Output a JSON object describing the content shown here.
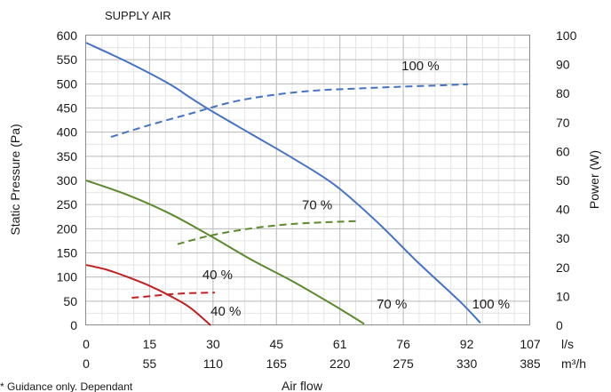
{
  "chart_data": {
    "type": "line",
    "title": "SUPPLY AIR",
    "xlabel": "Air flow",
    "ylabel_left": "Static Pressure (Pa)",
    "ylabel_right": "Power (W)",
    "footnote": "* Guidance only. Dependant",
    "grid": true,
    "x_unit_primary": "l/s",
    "x_unit_secondary": "m³/h",
    "xlim": [
      0,
      107
    ],
    "ylim_left": [
      0,
      600
    ],
    "ylim_right": [
      0,
      100
    ],
    "x_ticks_primary": [
      "0",
      "15",
      "30",
      "45",
      "61",
      "76",
      "92",
      "107"
    ],
    "x_ticks_secondary": [
      "0",
      "55",
      "110",
      "165",
      "220",
      "275",
      "330",
      "385"
    ],
    "y_ticks_left": [
      "0",
      "50",
      "100",
      "150",
      "200",
      "250",
      "300",
      "350",
      "400",
      "450",
      "500",
      "550",
      "600"
    ],
    "y_ticks_right": [
      "0",
      "10",
      "20",
      "30",
      "40",
      "50",
      "60",
      "70",
      "80",
      "90",
      "100"
    ],
    "series": [
      {
        "name": "100 %",
        "kind": "pressure",
        "axis": "left",
        "style": "solid",
        "color": "#4472C4",
        "points": [
          [
            0,
            585
          ],
          [
            10,
            545
          ],
          [
            20,
            500
          ],
          [
            25,
            472
          ],
          [
            30,
            445
          ],
          [
            40,
            395
          ],
          [
            50,
            345
          ],
          [
            60,
            290
          ],
          [
            70,
            215
          ],
          [
            80,
            130
          ],
          [
            90,
            50
          ],
          [
            95,
            5
          ]
        ],
        "label_xy": [
          93,
          35
        ]
      },
      {
        "name": "70 %",
        "kind": "pressure",
        "axis": "left",
        "style": "solid",
        "color": "#5B8A2D",
        "points": [
          [
            0,
            300
          ],
          [
            10,
            270
          ],
          [
            20,
            232
          ],
          [
            30,
            185
          ],
          [
            40,
            135
          ],
          [
            50,
            90
          ],
          [
            60,
            40
          ],
          [
            67,
            3
          ]
        ],
        "label_xy": [
          70,
          35
        ]
      },
      {
        "name": "40 %",
        "kind": "pressure",
        "axis": "left",
        "style": "solid",
        "color": "#C0201F",
        "points": [
          [
            0,
            125
          ],
          [
            5,
            115
          ],
          [
            10,
            100
          ],
          [
            15,
            83
          ],
          [
            20,
            62
          ],
          [
            25,
            37
          ],
          [
            30,
            0
          ]
        ],
        "label_xy": [
          30,
          20
        ]
      },
      {
        "name": "100 %",
        "kind": "power",
        "axis": "right",
        "style": "dashed",
        "color": "#4472C4",
        "points": [
          [
            6,
            65
          ],
          [
            15,
            69
          ],
          [
            25,
            73
          ],
          [
            35,
            77
          ],
          [
            45,
            79.5
          ],
          [
            55,
            81
          ],
          [
            65,
            81.7
          ],
          [
            75,
            82.3
          ],
          [
            85,
            82.8
          ],
          [
            92,
            83.2
          ]
        ],
        "label_xy": [
          76,
          88
        ]
      },
      {
        "name": "70 %",
        "kind": "power",
        "axis": "right",
        "style": "dashed",
        "color": "#5B8A2D",
        "points": [
          [
            22,
            28
          ],
          [
            30,
            31
          ],
          [
            40,
            33.5
          ],
          [
            50,
            35
          ],
          [
            60,
            35.7
          ],
          [
            66,
            36
          ]
        ],
        "label_xy": [
          52,
          40
        ]
      },
      {
        "name": "40 %",
        "kind": "power",
        "axis": "right",
        "style": "dashed",
        "color": "#C0201F",
        "points": [
          [
            11,
            9.5
          ],
          [
            15,
            10
          ],
          [
            20,
            10.7
          ],
          [
            25,
            11.1
          ],
          [
            31,
            11.3
          ]
        ],
        "label_xy": [
          28,
          16
        ]
      }
    ]
  }
}
